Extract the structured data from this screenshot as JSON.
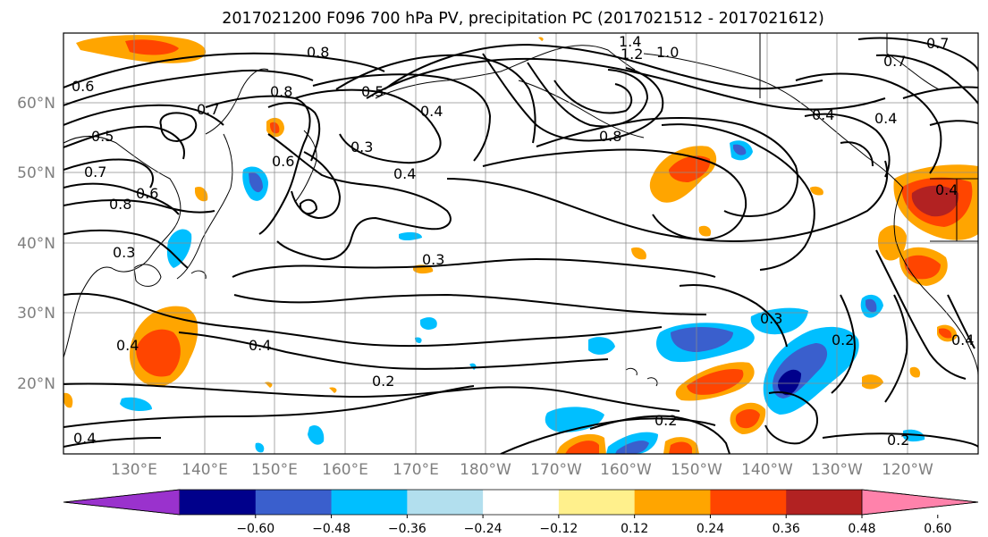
{
  "title": "2017021200 F096 700 hPa PV, precipitation PC (2017021512 - 2017021612)",
  "lat_labels": [
    "60°N",
    "50°N",
    "40°N",
    "30°N",
    "20°N"
  ],
  "lon_labels": [
    "130°E",
    "140°E",
    "150°E",
    "160°E",
    "170°E",
    "180°W",
    "170°W",
    "160°W",
    "150°W",
    "140°W",
    "130°W",
    "120°W"
  ],
  "colorbar": {
    "ticks": [
      "−0.60",
      "−0.48",
      "−0.36",
      "−0.24",
      "−0.12",
      "0.12",
      "0.24",
      "0.36",
      "0.48",
      "0.60"
    ],
    "colors": [
      "#9a32cd",
      "#00008b",
      "#3a5fcd",
      "#00bfff",
      "#b2dfee",
      "#ffffff",
      "#fff08c",
      "#ffa500",
      "#ff4500",
      "#b22222",
      "#ff82ab"
    ]
  },
  "contour_labels": [
    "0.8",
    "0.8",
    "0.6",
    "0.5",
    "0.7",
    "0.8",
    "0.6",
    "0.7",
    "0.6",
    "0.5",
    "0.3",
    "0.4",
    "0.4",
    "0.3",
    "0.3",
    "0.4",
    "0.2",
    "0.2",
    "0.2",
    "0.3",
    "0.2",
    "1.4",
    "1.2",
    "1.0",
    "0.8",
    "0.4",
    "0.4",
    "0.7",
    "0.7",
    "0.4",
    "0.4",
    "0.4",
    "0.4"
  ]
}
